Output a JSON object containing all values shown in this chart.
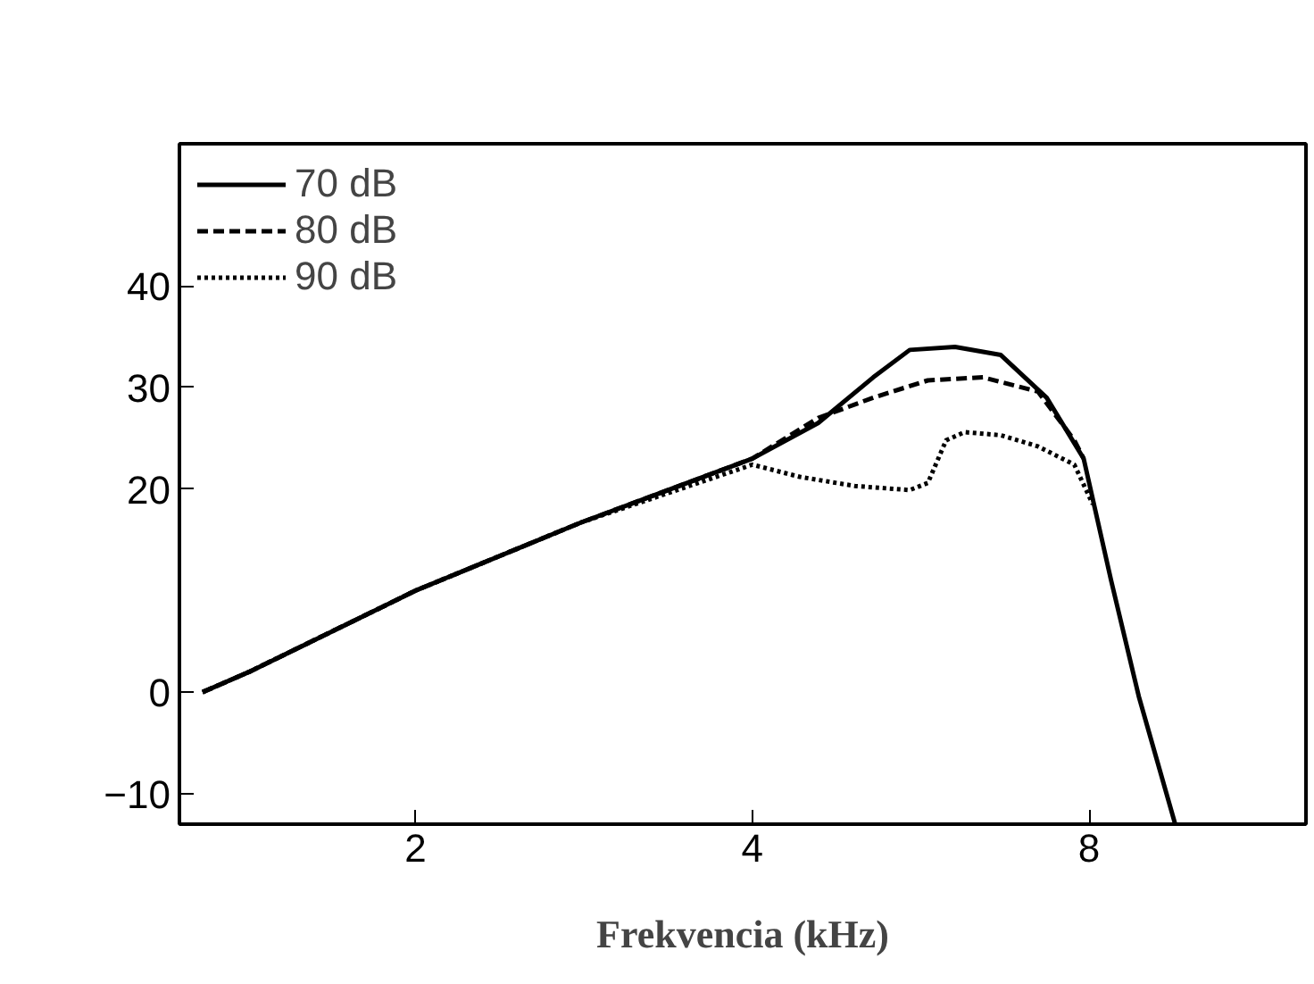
{
  "chart_data": {
    "type": "line",
    "xlabel": "Frekvencia (kHz)",
    "log": "x",
    "xlim": [
      1.23,
      12.5
    ],
    "xticks": [
      2,
      4,
      8
    ],
    "ylim": [
      -13,
      54
    ],
    "yticks": [
      -10,
      0,
      20,
      30,
      40
    ],
    "grid": false,
    "legend": "top left",
    "marker": "none",
    "series": [
      {
        "name": "70 dB",
        "color": "#000000",
        "line_style": "solid",
        "x": [
          1.29,
          1.42,
          2.0,
          2.81,
          4.0,
          4.58,
          5.13,
          5.53,
          6.07,
          6.67,
          7.33,
          7.91,
          8.37,
          8.86,
          9.55
        ],
        "values": [
          0,
          2,
          10,
          16.7,
          23,
          26.5,
          31,
          33.7,
          34,
          33.2,
          29,
          23,
          11,
          -0.4,
          -13
        ]
      },
      {
        "name": "80 dB",
        "color": "#000000",
        "line_style": "dashed",
        "x": [
          1.29,
          1.42,
          2.0,
          2.81,
          4.0,
          4.58,
          5.13,
          5.74,
          6.43,
          7.2,
          7.76,
          7.91
        ],
        "values": [
          0,
          2,
          10,
          16.7,
          23,
          27,
          29,
          30.7,
          31,
          29.6,
          24.8,
          23
        ]
      },
      {
        "name": "90 dB",
        "color": "#000000",
        "line_style": "dotted",
        "x": [
          1.29,
          1.42,
          2.0,
          2.81,
          4.0,
          4.41,
          4.94,
          5.53,
          5.74,
          5.96,
          6.19,
          6.67,
          7.2,
          7.76,
          8.06
        ],
        "values": [
          0,
          2,
          10,
          16.7,
          22.4,
          21.2,
          20.3,
          19.9,
          20.6,
          24.8,
          25.6,
          25.3,
          24.2,
          22.4,
          18.5
        ]
      }
    ]
  }
}
